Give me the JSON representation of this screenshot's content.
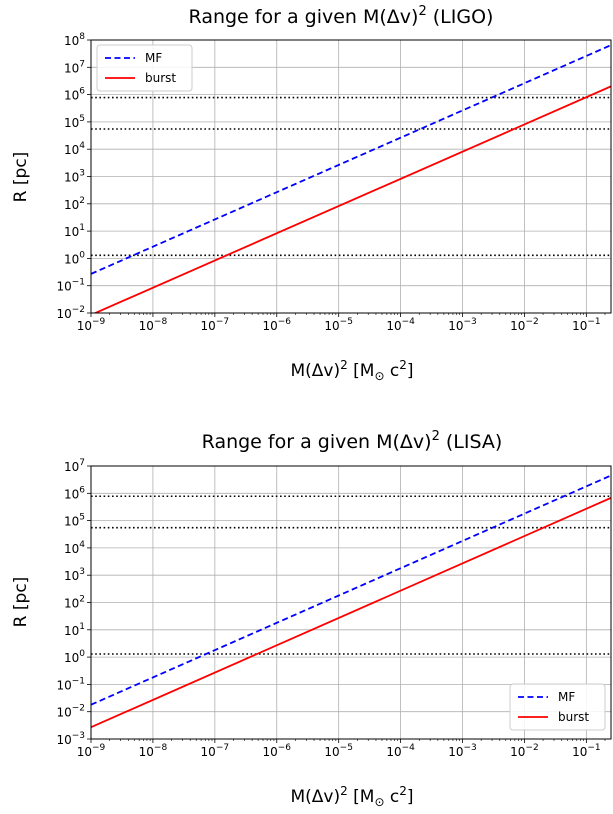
{
  "chart_data": [
    {
      "type": "line",
      "title_main": "Range for a given M(Δv)",
      "title_sup": "2",
      "title_tail": " (LIGO)",
      "xlabel_main": "M(Δv)",
      "xlabel_sup1": "2",
      "xlabel_mid": " [M",
      "xlabel_sub": "⊙",
      "xlabel_c": " c",
      "xlabel_sup2": "2",
      "xlabel_end": "]",
      "ylabel": "R [pc]",
      "xscale": "log",
      "yscale": "log",
      "xlim": [
        1e-09,
        0.25
      ],
      "ylim": [
        0.01,
        100000000.0
      ],
      "grid": true,
      "legend": "top-left",
      "x_ticks": [
        {
          "value": 1e-09,
          "exp": "−9"
        },
        {
          "value": 1e-08,
          "exp": "−8"
        },
        {
          "value": 1e-07,
          "exp": "−7"
        },
        {
          "value": 1e-06,
          "exp": "−6"
        },
        {
          "value": 1e-05,
          "exp": "−5"
        },
        {
          "value": 0.0001,
          "exp": "−4"
        },
        {
          "value": 0.001,
          "exp": "−3"
        },
        {
          "value": 0.01,
          "exp": "−2"
        },
        {
          "value": 0.1,
          "exp": "−1"
        }
      ],
      "y_ticks": [
        {
          "value": 0.01,
          "exp": "−2"
        },
        {
          "value": 0.1,
          "exp": "−1"
        },
        {
          "value": 1.0,
          "exp": "0"
        },
        {
          "value": 10.0,
          "exp": "1"
        },
        {
          "value": 100.0,
          "exp": "2"
        },
        {
          "value": 1000.0,
          "exp": "3"
        },
        {
          "value": 10000.0,
          "exp": "4"
        },
        {
          "value": 100000.0,
          "exp": "5"
        },
        {
          "value": 1000000.0,
          "exp": "6"
        },
        {
          "value": 10000000.0,
          "exp": "7"
        },
        {
          "value": 100000000.0,
          "exp": "8"
        }
      ],
      "hlines": [
        1.3,
        55000,
        780000
      ],
      "series": [
        {
          "name": "MF",
          "style": "dashed",
          "color": "#0000ff",
          "x": [
            1e-09,
            0.25
          ],
          "y": [
            0.27,
            65000000.0
          ]
        },
        {
          "name": "burst",
          "style": "solid",
          "color": "#ff0000",
          "x": [
            1e-09,
            0.25
          ],
          "y": [
            0.0085,
            2000000.0
          ]
        }
      ]
    },
    {
      "type": "line",
      "title_main": "Range for a given M(Δv)",
      "title_sup": "2",
      "title_tail": " (LISA)",
      "xlabel_main": "M(Δv)",
      "xlabel_sup1": "2",
      "xlabel_mid": " [M",
      "xlabel_sub": "⊙",
      "xlabel_c": " c",
      "xlabel_sup2": "2",
      "xlabel_end": "]",
      "ylabel": "R [pc]",
      "xscale": "log",
      "yscale": "log",
      "xlim": [
        1e-09,
        0.25
      ],
      "ylim": [
        0.001,
        10000000.0
      ],
      "grid": true,
      "legend": "bottom-right",
      "x_ticks": [
        {
          "value": 1e-09,
          "exp": "−9"
        },
        {
          "value": 1e-08,
          "exp": "−8"
        },
        {
          "value": 1e-07,
          "exp": "−7"
        },
        {
          "value": 1e-06,
          "exp": "−6"
        },
        {
          "value": 1e-05,
          "exp": "−5"
        },
        {
          "value": 0.0001,
          "exp": "−4"
        },
        {
          "value": 0.001,
          "exp": "−3"
        },
        {
          "value": 0.01,
          "exp": "−2"
        },
        {
          "value": 0.1,
          "exp": "−1"
        }
      ],
      "y_ticks": [
        {
          "value": 0.001,
          "exp": "−3"
        },
        {
          "value": 0.01,
          "exp": "−2"
        },
        {
          "value": 0.1,
          "exp": "−1"
        },
        {
          "value": 1.0,
          "exp": "0"
        },
        {
          "value": 10.0,
          "exp": "1"
        },
        {
          "value": 100.0,
          "exp": "2"
        },
        {
          "value": 1000.0,
          "exp": "3"
        },
        {
          "value": 10000.0,
          "exp": "4"
        },
        {
          "value": 100000.0,
          "exp": "5"
        },
        {
          "value": 1000000.0,
          "exp": "6"
        },
        {
          "value": 10000000.0,
          "exp": "7"
        }
      ],
      "hlines": [
        1.3,
        55000,
        780000
      ],
      "series": [
        {
          "name": "MF",
          "style": "dashed",
          "color": "#0000ff",
          "x": [
            1e-09,
            0.25
          ],
          "y": [
            0.018,
            4500000.0
          ]
        },
        {
          "name": "burst",
          "style": "solid",
          "color": "#ff0000",
          "x": [
            1e-09,
            0.25
          ],
          "y": [
            0.0027,
            680000.0
          ]
        }
      ]
    }
  ]
}
